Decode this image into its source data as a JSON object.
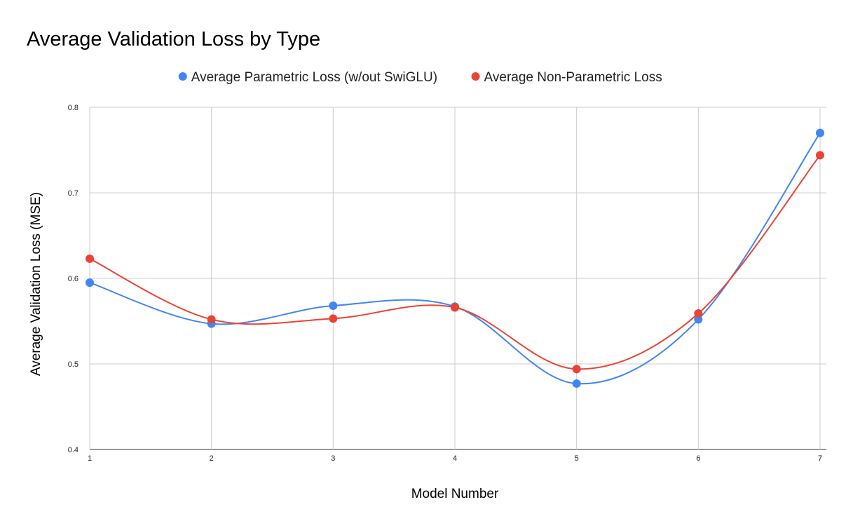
{
  "chart_data": {
    "type": "line",
    "title": "Average Validation Loss by Type",
    "xlabel": "Model Number",
    "ylabel": "Average Validation Loss (MSE)",
    "x": [
      1,
      2,
      3,
      4,
      5,
      6,
      7
    ],
    "x_tick_labels": [
      "1",
      "2",
      "3",
      "4",
      "5",
      "6",
      "7"
    ],
    "ylim": [
      0.4,
      0.8
    ],
    "y_tick_labels": [
      "0.4",
      "0.5",
      "0.6",
      "0.7",
      "0.8"
    ],
    "y_ticks": [
      0.4,
      0.5,
      0.6,
      0.7,
      0.8
    ],
    "grid": true,
    "smooth": true,
    "legend_position": "top",
    "series": [
      {
        "name": "Average Parametric Loss (w/out SwiGLU)",
        "color": "#4285f4",
        "values": [
          0.595,
          0.547,
          0.568,
          0.567,
          0.477,
          0.552,
          0.77
        ]
      },
      {
        "name": "Average Non-Parametric Loss",
        "color": "#ea4335",
        "values": [
          0.623,
          0.552,
          0.553,
          0.566,
          0.494,
          0.559,
          0.744
        ]
      }
    ]
  }
}
